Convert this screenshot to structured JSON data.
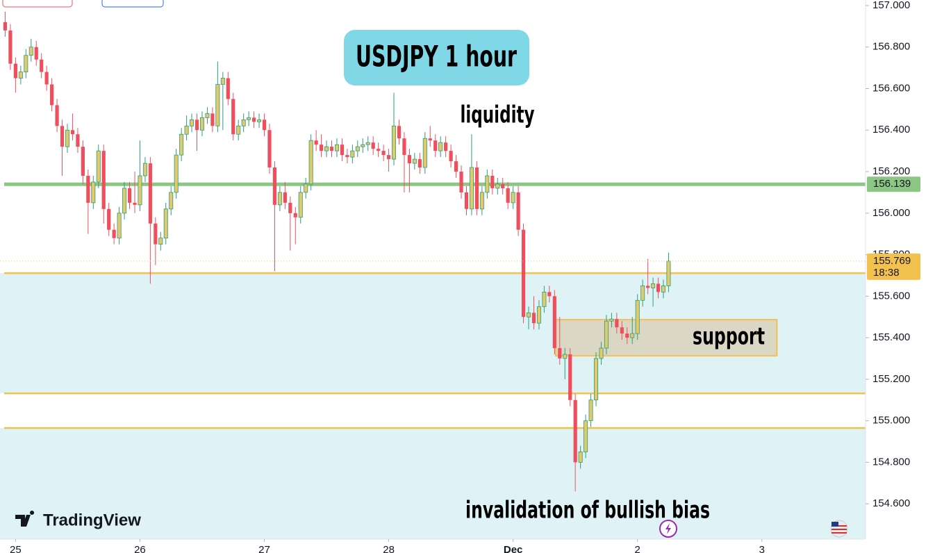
{
  "chart_data": {
    "type": "candlestick",
    "title": "USDJPY 1 hour",
    "brand": "TradingView",
    "countdown": "18:38",
    "up_color": "#e2c96c",
    "up_border": "#2a9d7a",
    "down_color": "#ef4f5c",
    "xlim": [
      -3,
      164
    ],
    "ylim": [
      154.43,
      157.03
    ],
    "xticks": [
      {
        "value": 0,
        "label": "25"
      },
      {
        "value": 24,
        "label": "26"
      },
      {
        "value": 48,
        "label": "27"
      },
      {
        "value": 72,
        "label": "28"
      },
      {
        "value": 96,
        "label": "Dec"
      },
      {
        "value": 120,
        "label": "2"
      },
      {
        "value": 144,
        "label": "3"
      }
    ],
    "yticks": [
      {
        "value": 154.6,
        "label": "154.600"
      },
      {
        "value": 154.8,
        "label": "154.800"
      },
      {
        "value": 155,
        "label": "155.000"
      },
      {
        "value": 155.2,
        "label": "155.200"
      },
      {
        "value": 155.4,
        "label": "155.400"
      },
      {
        "value": 155.6,
        "label": "155.600"
      },
      {
        "value": 155.8,
        "label": "155.800"
      },
      {
        "value": 156,
        "label": "156.000"
      },
      {
        "value": 156.2,
        "label": "156.200"
      },
      {
        "value": 156.4,
        "label": "156.400"
      },
      {
        "value": 156.6,
        "label": "156.600"
      },
      {
        "value": 156.8,
        "label": "156.800"
      },
      {
        "value": 157,
        "label": "157.000"
      }
    ],
    "x": [
      -2,
      -1,
      0,
      1,
      2,
      3,
      4,
      5,
      6,
      7,
      8,
      9,
      10,
      11,
      12,
      13,
      14,
      15,
      16,
      17,
      18,
      19,
      20,
      21,
      22,
      23,
      24,
      25,
      26,
      27,
      28,
      29,
      30,
      31,
      32,
      33,
      34,
      35,
      36,
      37,
      38,
      39,
      40,
      41,
      42,
      43,
      44,
      45,
      46,
      47,
      48,
      49,
      50,
      51,
      52,
      53,
      54,
      55,
      56,
      57,
      58,
      59,
      60,
      61,
      62,
      63,
      64,
      65,
      66,
      67,
      68,
      69,
      70,
      71,
      72,
      73,
      74,
      75,
      76,
      77,
      78,
      79,
      80,
      81,
      82,
      83,
      84,
      85,
      86,
      87,
      88,
      89,
      90,
      91,
      92,
      93,
      94,
      95,
      96,
      97,
      98,
      99,
      100,
      101,
      102,
      103,
      104,
      105,
      106,
      107,
      108,
      109,
      110,
      111,
      112,
      113,
      114,
      115,
      116,
      117,
      118,
      119,
      120,
      121,
      122,
      123,
      124,
      125,
      126
    ],
    "ohlc": [
      [
        156.92,
        156.97,
        156.85,
        156.88
      ],
      [
        156.88,
        156.91,
        156.69,
        156.72
      ],
      [
        156.72,
        156.75,
        156.58,
        156.65
      ],
      [
        156.65,
        156.71,
        156.62,
        156.68
      ],
      [
        156.68,
        156.79,
        156.65,
        156.76
      ],
      [
        156.76,
        156.84,
        156.73,
        156.8
      ],
      [
        156.8,
        156.83,
        156.71,
        156.74
      ],
      [
        156.74,
        156.77,
        156.65,
        156.68
      ],
      [
        156.68,
        156.71,
        156.59,
        156.62
      ],
      [
        156.62,
        156.65,
        156.49,
        156.52
      ],
      [
        156.52,
        156.55,
        156.39,
        156.42
      ],
      [
        156.42,
        156.45,
        156.18,
        156.32
      ],
      [
        156.32,
        156.43,
        156.29,
        156.4
      ],
      [
        156.4,
        156.48,
        156.35,
        156.38
      ],
      [
        156.38,
        156.41,
        156.29,
        156.32
      ],
      [
        156.32,
        156.35,
        156.14,
        156.18
      ],
      [
        156.18,
        156.21,
        155.9,
        156.05
      ],
      [
        156.05,
        156.18,
        156.02,
        156.15
      ],
      [
        156.15,
        156.33,
        156.12,
        156.3
      ],
      [
        156.3,
        156.33,
        155.95,
        156.02
      ],
      [
        156.02,
        156.05,
        155.89,
        155.92
      ],
      [
        155.92,
        155.95,
        155.85,
        155.88
      ],
      [
        155.88,
        156.03,
        155.85,
        156
      ],
      [
        156,
        156.15,
        155.97,
        156.12
      ],
      [
        156.12,
        156.15,
        156.02,
        156.05
      ],
      [
        156.05,
        156.2,
        156,
        156.04
      ],
      [
        156.04,
        156.35,
        156.01,
        156.18
      ],
      [
        156.18,
        156.27,
        156.15,
        156.24
      ],
      [
        156.24,
        156.27,
        155.66,
        155.95
      ],
      [
        155.95,
        155.98,
        155.75,
        155.85
      ],
      [
        155.85,
        155.91,
        155.82,
        155.88
      ],
      [
        155.88,
        156.05,
        155.85,
        156.02
      ],
      [
        156.02,
        156.13,
        155.99,
        156.1
      ],
      [
        156.1,
        156.31,
        156.07,
        156.28
      ],
      [
        156.28,
        156.41,
        156.25,
        156.38
      ],
      [
        156.38,
        156.47,
        156.35,
        156.42
      ],
      [
        156.42,
        156.48,
        156.39,
        156.45
      ],
      [
        156.45,
        156.48,
        156.3,
        156.4
      ],
      [
        156.4,
        156.49,
        156.37,
        156.46
      ],
      [
        156.46,
        156.51,
        156.43,
        156.48
      ],
      [
        156.48,
        156.51,
        156.39,
        156.42
      ],
      [
        156.42,
        156.73,
        156.39,
        156.62
      ],
      [
        156.62,
        156.68,
        156.4,
        156.65
      ],
      [
        156.65,
        156.68,
        156.52,
        156.55
      ],
      [
        156.55,
        156.58,
        156.35,
        156.38
      ],
      [
        156.38,
        156.45,
        156.35,
        156.42
      ],
      [
        156.42,
        156.48,
        156.39,
        156.45
      ],
      [
        156.45,
        156.49,
        156.42,
        156.46
      ],
      [
        156.46,
        156.49,
        156.41,
        156.44
      ],
      [
        156.44,
        156.48,
        156.41,
        156.45
      ],
      [
        156.45,
        156.48,
        156.37,
        156.4
      ],
      [
        156.4,
        156.43,
        156.19,
        156.22
      ],
      [
        156.22,
        156.25,
        155.72,
        156.04
      ],
      [
        156.04,
        156.13,
        156.01,
        156.1
      ],
      [
        156.1,
        156.15,
        156.02,
        156.05
      ],
      [
        156.05,
        156.08,
        155.82,
        156
      ],
      [
        156,
        156.03,
        155.85,
        155.98
      ],
      [
        155.98,
        156.13,
        155.95,
        156.1
      ],
      [
        156.1,
        156.17,
        156.07,
        156.14
      ],
      [
        156.14,
        156.38,
        156.11,
        156.35
      ],
      [
        156.35,
        156.4,
        156.3,
        156.33
      ],
      [
        156.33,
        156.38,
        156.27,
        156.3
      ],
      [
        156.3,
        156.35,
        156.27,
        156.32
      ],
      [
        156.32,
        156.35,
        156.27,
        156.3
      ],
      [
        156.3,
        156.36,
        156.27,
        156.33
      ],
      [
        156.33,
        156.36,
        156.25,
        156.28
      ],
      [
        156.28,
        156.31,
        156.24,
        156.27
      ],
      [
        156.27,
        156.33,
        156.24,
        156.3
      ],
      [
        156.3,
        156.35,
        156.27,
        156.32
      ],
      [
        156.32,
        156.36,
        156.29,
        156.33
      ],
      [
        156.33,
        156.37,
        156.3,
        156.34
      ],
      [
        156.34,
        156.37,
        156.28,
        156.31
      ],
      [
        156.31,
        156.34,
        156.27,
        156.3
      ],
      [
        156.3,
        156.33,
        156.25,
        156.28
      ],
      [
        156.28,
        156.31,
        156.2,
        156.26
      ],
      [
        156.26,
        156.58,
        156.23,
        156.42
      ],
      [
        156.42,
        156.45,
        156.33,
        156.36
      ],
      [
        156.36,
        156.39,
        156.1,
        156.28
      ],
      [
        156.28,
        156.31,
        156.1,
        156.24
      ],
      [
        156.24,
        156.29,
        156.21,
        156.26
      ],
      [
        156.26,
        156.29,
        156.19,
        156.22
      ],
      [
        156.22,
        156.39,
        156.19,
        156.36
      ],
      [
        156.36,
        156.42,
        156.32,
        156.35
      ],
      [
        156.35,
        156.38,
        156.27,
        156.3
      ],
      [
        156.3,
        156.37,
        156.27,
        156.34
      ],
      [
        156.34,
        156.37,
        156.27,
        156.3
      ],
      [
        156.3,
        156.33,
        156.22,
        156.25
      ],
      [
        156.25,
        156.28,
        156.17,
        156.2
      ],
      [
        156.2,
        156.23,
        156.07,
        156.1
      ],
      [
        156.1,
        156.13,
        155.99,
        156.02
      ],
      [
        156.02,
        156.38,
        155.99,
        156.22
      ],
      [
        156.22,
        156.25,
        155.99,
        156.02
      ],
      [
        156.02,
        156.13,
        155.99,
        156.1
      ],
      [
        156.1,
        156.21,
        156.07,
        156.18
      ],
      [
        156.18,
        156.21,
        156.09,
        156.12
      ],
      [
        156.12,
        156.17,
        156.09,
        156.14
      ],
      [
        156.14,
        156.17,
        156.09,
        156.12
      ],
      [
        156.12,
        156.15,
        156.02,
        156.05
      ],
      [
        156.05,
        156.13,
        156.02,
        156.1
      ],
      [
        156.1,
        156.13,
        155.89,
        155.92
      ],
      [
        155.92,
        155.95,
        155.47,
        155.5
      ],
      [
        155.5,
        155.55,
        155.44,
        155.52
      ],
      [
        155.52,
        155.6,
        155.44,
        155.47
      ],
      [
        155.47,
        155.58,
        155.44,
        155.55
      ],
      [
        155.55,
        155.65,
        155.52,
        155.62
      ],
      [
        155.62,
        155.65,
        155.57,
        155.6
      ],
      [
        155.6,
        155.63,
        155.32,
        155.35
      ],
      [
        155.35,
        155.5,
        155.27,
        155.3
      ],
      [
        155.3,
        155.35,
        155.2,
        155.32
      ],
      [
        155.32,
        155.35,
        155.07,
        155.1
      ],
      [
        155.1,
        155.13,
        154.66,
        154.8
      ],
      [
        154.8,
        154.88,
        154.77,
        154.85
      ],
      [
        154.85,
        155.03,
        154.82,
        155
      ],
      [
        155,
        155.13,
        154.97,
        155.1
      ],
      [
        155.1,
        155.33,
        155.07,
        155.3
      ],
      [
        155.3,
        155.38,
        155.27,
        155.35
      ],
      [
        155.35,
        155.51,
        155.32,
        155.48
      ],
      [
        155.48,
        155.52,
        155.45,
        155.49
      ],
      [
        155.49,
        155.52,
        155.42,
        155.45
      ],
      [
        155.45,
        155.48,
        155.39,
        155.42
      ],
      [
        155.42,
        155.45,
        155.37,
        155.4
      ],
      [
        155.4,
        155.5,
        155.37,
        155.42
      ],
      [
        155.42,
        155.61,
        155.39,
        155.58
      ],
      [
        155.58,
        155.68,
        155.55,
        155.65
      ],
      [
        155.65,
        155.78,
        155.61,
        155.64
      ],
      [
        155.64,
        155.69,
        155.55,
        155.66
      ],
      [
        155.66,
        155.69,
        155.59,
        155.62
      ],
      [
        155.62,
        155.68,
        155.59,
        155.65
      ],
      [
        155.65,
        155.81,
        155.62,
        155.769
      ]
    ],
    "levels": [
      {
        "value": 156.139,
        "color": "#8cc584",
        "label": "156.139"
      },
      {
        "value": 155.711,
        "color": "#f2c14e"
      },
      {
        "value": 155.132,
        "color": "#f2c14e"
      },
      {
        "value": 154.965,
        "color": "#f2c14e"
      }
    ],
    "zones": [
      {
        "from": 155.711,
        "to": 155.132,
        "color": "#dff3f6"
      },
      {
        "from": 154.965,
        "to": 154.43,
        "color": "#dff3f6"
      }
    ],
    "box": {
      "x": [
        104.2,
        146.9
      ],
      "y": [
        155.313,
        155.487
      ],
      "color": "#d9d5bf",
      "label": "support"
    },
    "annotations": [
      {
        "text": "liquidity"
      },
      {
        "text": "invalidation of bullish bias"
      }
    ]
  }
}
